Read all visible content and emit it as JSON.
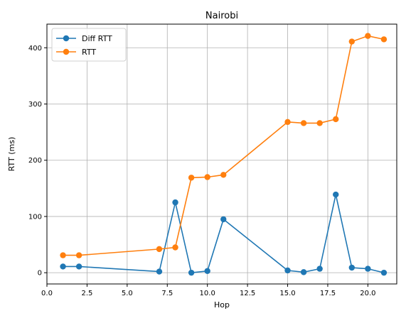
{
  "chart_data": {
    "type": "line",
    "title": "Nairobi",
    "xlabel": "Hop",
    "ylabel": "RTT (ms)",
    "xlim": [
      0,
      21.8
    ],
    "ylim": [
      -20,
      442
    ],
    "xticks": [
      0.0,
      2.5,
      5.0,
      7.5,
      10.0,
      12.5,
      15.0,
      17.5,
      20.0
    ],
    "xtick_labels": [
      "0.0",
      "2.5",
      "5.0",
      "7.5",
      "10.0",
      "12.5",
      "15.0",
      "17.5",
      "20.0"
    ],
    "yticks": [
      0,
      100,
      200,
      300,
      400
    ],
    "ytick_labels": [
      "0",
      "100",
      "200",
      "300",
      "400"
    ],
    "grid": true,
    "legend_position": "top-left",
    "x": [
      1,
      2,
      7,
      8,
      9,
      10,
      11,
      15,
      16,
      17,
      18,
      19,
      20,
      21
    ],
    "series": [
      {
        "name": "Diff RTT",
        "color": "#1f77b4",
        "values": [
          11,
          11,
          2,
          125,
          0,
          3,
          95,
          4,
          1,
          7,
          139,
          9,
          7,
          0
        ]
      },
      {
        "name": "RTT",
        "color": "#ff7f0e",
        "values": [
          31,
          31,
          42,
          45,
          169,
          170,
          174,
          268,
          266,
          266,
          273,
          411,
          421,
          415
        ]
      }
    ]
  }
}
